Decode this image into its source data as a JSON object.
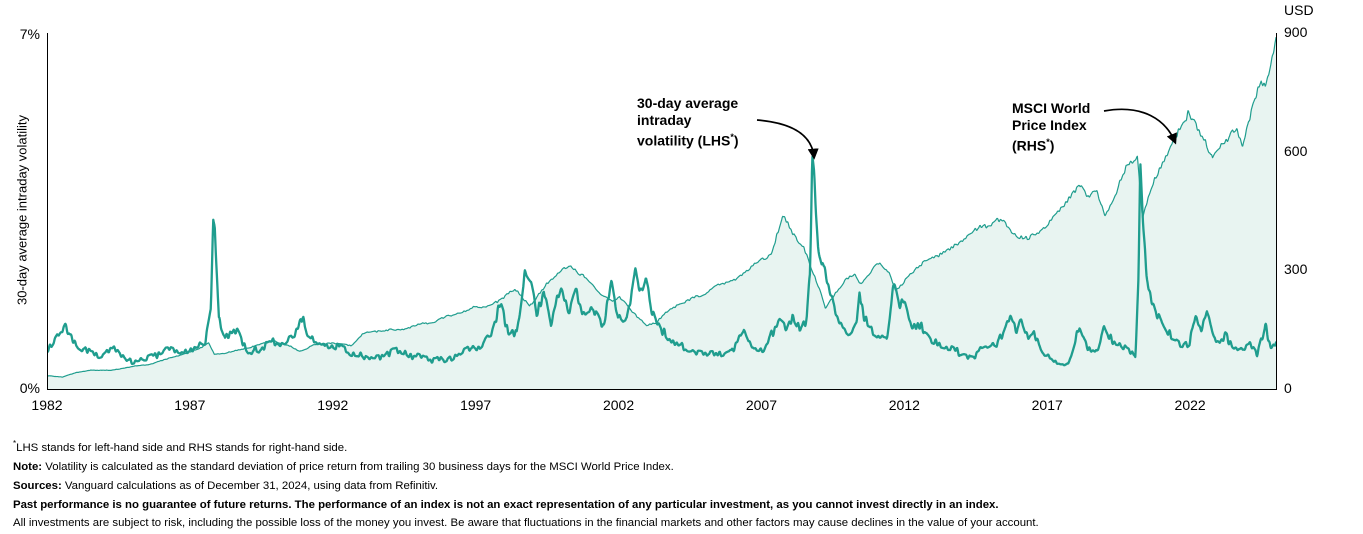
{
  "chart_data": {
    "type": "line",
    "title": "",
    "grid": false,
    "legend_position": "inline-annotations",
    "x_axis": {
      "range": [
        1982,
        2024.97
      ],
      "ticks": [
        1982,
        1987,
        1992,
        1997,
        2002,
        2007,
        2012,
        2017,
        2022
      ]
    },
    "left_axis": {
      "label": "30-day average intraday volatility",
      "range": [
        0,
        7
      ],
      "unit": "%",
      "tick_labels_top_to_bottom": [
        "7%",
        "0%"
      ]
    },
    "right_axis": {
      "label": "USD",
      "range": [
        0,
        900
      ],
      "ticks_top_to_bottom": [
        900,
        600,
        300,
        0
      ]
    },
    "colors": {
      "line": "#1f9d8e",
      "area_fill": "#e8f4f1",
      "axis": "#000000",
      "annotation": "#000000"
    },
    "series": [
      {
        "name": "30-day average intraday volatility (LHS)",
        "axis": "left",
        "style": "line",
        "stroke_width": 2.3,
        "unit": "%",
        "noise": {
          "abs": 0.1,
          "rel": 0.18,
          "freq_slow": 3,
          "freq_fast": 16
        },
        "anchors": [
          [
            1982.0,
            0.75
          ],
          [
            1982.3,
            1.0
          ],
          [
            1982.6,
            1.3
          ],
          [
            1982.9,
            0.95
          ],
          [
            1983.3,
            0.75
          ],
          [
            1983.8,
            0.65
          ],
          [
            1984.3,
            0.75
          ],
          [
            1984.8,
            0.6
          ],
          [
            1985.3,
            0.55
          ],
          [
            1985.9,
            0.65
          ],
          [
            1986.3,
            0.85
          ],
          [
            1986.7,
            0.7
          ],
          [
            1987.1,
            0.75
          ],
          [
            1987.5,
            0.9
          ],
          [
            1987.7,
            1.5
          ],
          [
            1987.78,
            3.35
          ],
          [
            1987.84,
            3.25
          ],
          [
            1987.98,
            1.4
          ],
          [
            1988.2,
            1.0
          ],
          [
            1988.6,
            1.1
          ],
          [
            1989.0,
            0.8
          ],
          [
            1989.5,
            0.75
          ],
          [
            1989.9,
            0.95
          ],
          [
            1990.3,
            0.85
          ],
          [
            1990.65,
            1.2
          ],
          [
            1990.85,
            1.45
          ],
          [
            1991.1,
            1.05
          ],
          [
            1991.6,
            0.8
          ],
          [
            1992.1,
            0.85
          ],
          [
            1992.6,
            0.7
          ],
          [
            1993.1,
            0.6
          ],
          [
            1993.7,
            0.65
          ],
          [
            1994.2,
            0.75
          ],
          [
            1994.8,
            0.65
          ],
          [
            1995.4,
            0.55
          ],
          [
            1996.0,
            0.6
          ],
          [
            1996.6,
            0.75
          ],
          [
            1997.1,
            0.85
          ],
          [
            1997.5,
            1.05
          ],
          [
            1997.82,
            1.75
          ],
          [
            1998.1,
            1.1
          ],
          [
            1998.4,
            1.05
          ],
          [
            1998.68,
            2.2
          ],
          [
            1998.9,
            2.0
          ],
          [
            1999.1,
            1.45
          ],
          [
            1999.35,
            1.95
          ],
          [
            1999.6,
            1.25
          ],
          [
            1999.95,
            2.05
          ],
          [
            2000.2,
            1.45
          ],
          [
            2000.45,
            1.9
          ],
          [
            2000.75,
            1.35
          ],
          [
            2001.1,
            1.55
          ],
          [
            2001.45,
            1.25
          ],
          [
            2001.72,
            2.1
          ],
          [
            2001.95,
            1.45
          ],
          [
            2002.25,
            1.35
          ],
          [
            2002.55,
            2.3
          ],
          [
            2002.75,
            1.9
          ],
          [
            2002.92,
            2.15
          ],
          [
            2003.15,
            1.5
          ],
          [
            2003.5,
            1.15
          ],
          [
            2003.9,
            0.9
          ],
          [
            2004.4,
            0.8
          ],
          [
            2004.9,
            0.7
          ],
          [
            2005.4,
            0.65
          ],
          [
            2005.9,
            0.75
          ],
          [
            2006.35,
            1.15
          ],
          [
            2006.7,
            0.8
          ],
          [
            2007.05,
            0.7
          ],
          [
            2007.3,
            1.05
          ],
          [
            2007.6,
            1.35
          ],
          [
            2007.85,
            1.25
          ],
          [
            2008.05,
            1.5
          ],
          [
            2008.3,
            1.25
          ],
          [
            2008.55,
            1.4
          ],
          [
            2008.66,
            2.3
          ],
          [
            2008.74,
            4.35
          ],
          [
            2008.8,
            4.1
          ],
          [
            2008.95,
            2.7
          ],
          [
            2009.1,
            2.45
          ],
          [
            2009.35,
            1.9
          ],
          [
            2009.65,
            1.45
          ],
          [
            2010.0,
            1.05
          ],
          [
            2010.3,
            1.25
          ],
          [
            2010.4,
            1.9
          ],
          [
            2010.55,
            1.35
          ],
          [
            2010.8,
            1.15
          ],
          [
            2011.1,
            0.95
          ],
          [
            2011.35,
            1.05
          ],
          [
            2011.62,
            2.1
          ],
          [
            2011.8,
            1.65
          ],
          [
            2011.95,
            1.7
          ],
          [
            2012.2,
            1.15
          ],
          [
            2012.55,
            1.25
          ],
          [
            2012.9,
            0.9
          ],
          [
            2013.3,
            0.85
          ],
          [
            2013.8,
            0.75
          ],
          [
            2014.3,
            0.6
          ],
          [
            2014.8,
            0.8
          ],
          [
            2015.2,
            0.85
          ],
          [
            2015.65,
            1.35
          ],
          [
            2015.9,
            1.1
          ],
          [
            2016.05,
            1.3
          ],
          [
            2016.3,
            0.95
          ],
          [
            2016.5,
            1.1
          ],
          [
            2016.8,
            0.75
          ],
          [
            2017.2,
            0.55
          ],
          [
            2017.7,
            0.5
          ],
          [
            2018.1,
            1.3
          ],
          [
            2018.4,
            0.85
          ],
          [
            2018.7,
            0.75
          ],
          [
            2018.95,
            1.2
          ],
          [
            2019.3,
            0.85
          ],
          [
            2019.7,
            0.75
          ],
          [
            2020.05,
            0.7
          ],
          [
            2020.16,
            2.2
          ],
          [
            2020.22,
            4.3
          ],
          [
            2020.32,
            3.0
          ],
          [
            2020.5,
            1.9
          ],
          [
            2020.75,
            1.5
          ],
          [
            2021.0,
            1.3
          ],
          [
            2021.3,
            1.0
          ],
          [
            2021.7,
            0.85
          ],
          [
            2021.95,
            0.95
          ],
          [
            2022.15,
            1.5
          ],
          [
            2022.35,
            1.2
          ],
          [
            2022.55,
            1.55
          ],
          [
            2022.8,
            1.05
          ],
          [
            2023.0,
            0.95
          ],
          [
            2023.2,
            1.05
          ],
          [
            2023.45,
            0.8
          ],
          [
            2023.75,
            0.72
          ],
          [
            2024.0,
            0.85
          ],
          [
            2024.3,
            0.7
          ],
          [
            2024.6,
            1.25
          ],
          [
            2024.78,
            0.8
          ],
          [
            2024.97,
            0.9
          ]
        ]
      },
      {
        "name": "MSCI World Price Index (RHS)",
        "axis": "right",
        "style": "area",
        "stroke_width": 1.2,
        "unit": "USD",
        "noise": {
          "rel_slow": 0.028,
          "rel_fast": 0.012,
          "freq_slow": 2.2,
          "freq_fast": 18
        },
        "anchors": [
          [
            1982.0,
            33
          ],
          [
            1982.5,
            30
          ],
          [
            1983.0,
            42
          ],
          [
            1983.5,
            48
          ],
          [
            1984.2,
            46
          ],
          [
            1985.0,
            56
          ],
          [
            1985.7,
            66
          ],
          [
            1986.3,
            80
          ],
          [
            1986.9,
            92
          ],
          [
            1987.35,
            102
          ],
          [
            1987.62,
            115
          ],
          [
            1987.82,
            86
          ],
          [
            1988.1,
            90
          ],
          [
            1988.6,
            98
          ],
          [
            1989.3,
            110
          ],
          [
            1989.9,
            122
          ],
          [
            1990.5,
            108
          ],
          [
            1990.8,
            97
          ],
          [
            1991.3,
            110
          ],
          [
            1992.0,
            116
          ],
          [
            1992.6,
            112
          ],
          [
            1993.0,
            138
          ],
          [
            1994.0,
            152
          ],
          [
            1994.5,
            148
          ],
          [
            1995.0,
            160
          ],
          [
            1995.75,
            178
          ],
          [
            1996.4,
            192
          ],
          [
            1996.9,
            206
          ],
          [
            1997.4,
            214
          ],
          [
            1997.9,
            228
          ],
          [
            1998.4,
            247
          ],
          [
            1998.85,
            213
          ],
          [
            1999.2,
            247
          ],
          [
            1999.6,
            272
          ],
          [
            2000.3,
            311
          ],
          [
            2000.9,
            270
          ],
          [
            2001.4,
            244
          ],
          [
            2001.75,
            221
          ],
          [
            2002.0,
            232
          ],
          [
            2002.45,
            196
          ],
          [
            2002.95,
            165
          ],
          [
            2003.3,
            172
          ],
          [
            2003.95,
            206
          ],
          [
            2004.6,
            231
          ],
          [
            2005.7,
            265
          ],
          [
            2006.3,
            290
          ],
          [
            2006.75,
            311
          ],
          [
            2007.3,
            340
          ],
          [
            2007.7,
            428
          ],
          [
            2008.1,
            398
          ],
          [
            2008.45,
            363
          ],
          [
            2008.75,
            300
          ],
          [
            2008.97,
            252
          ],
          [
            2009.2,
            200
          ],
          [
            2009.55,
            235
          ],
          [
            2009.9,
            270
          ],
          [
            2010.25,
            288
          ],
          [
            2010.45,
            272
          ],
          [
            2010.8,
            290
          ],
          [
            2011.05,
            316
          ],
          [
            2011.4,
            307
          ],
          [
            2011.65,
            257
          ],
          [
            2012.0,
            278
          ],
          [
            2012.7,
            316
          ],
          [
            2013.5,
            355
          ],
          [
            2014.4,
            398
          ],
          [
            2015.2,
            427
          ],
          [
            2015.65,
            398
          ],
          [
            2015.95,
            380
          ],
          [
            2016.3,
            390
          ],
          [
            2016.8,
            412
          ],
          [
            2017.5,
            450
          ],
          [
            2018.1,
            510
          ],
          [
            2018.35,
            478
          ],
          [
            2018.7,
            500
          ],
          [
            2018.98,
            445
          ],
          [
            2019.4,
            500
          ],
          [
            2019.85,
            582
          ],
          [
            2020.12,
            590
          ],
          [
            2020.3,
            432
          ],
          [
            2020.6,
            500
          ],
          [
            2020.95,
            560
          ],
          [
            2021.4,
            640
          ],
          [
            2021.9,
            715
          ],
          [
            2022.2,
            660
          ],
          [
            2022.5,
            620
          ],
          [
            2022.75,
            573
          ],
          [
            2023.05,
            630
          ],
          [
            2023.4,
            655
          ],
          [
            2023.6,
            663
          ],
          [
            2023.8,
            612
          ],
          [
            2024.1,
            690
          ],
          [
            2024.45,
            766
          ],
          [
            2024.6,
            745
          ],
          [
            2024.97,
            874
          ]
        ]
      }
    ],
    "annotations": [
      {
        "lines": [
          "30-day average",
          "intraday",
          "volatility (LHS*)"
        ],
        "points_to": "2008 volatility spike"
      },
      {
        "lines": [
          "MSCI World",
          "Price Index",
          "(RHS*)"
        ],
        "points_to": "index area, 2022"
      }
    ]
  },
  "footnotes": [
    {
      "sup": "*",
      "bold": "",
      "text": "LHS stands for left-hand side and RHS stands for right-hand side."
    },
    {
      "sup": "",
      "bold": "Note:",
      "text": " Volatility is calculated as the standard deviation of price return from trailing 30 business days for the MSCI World Price Index."
    },
    {
      "sup": "",
      "bold": "Sources:",
      "text": " Vanguard calculations as of December 31, 2024, using data from Refinitiv."
    },
    {
      "sup": "",
      "bold": "Past performance is no guarantee of future returns. The performance of an index is not an exact representation of any particular investment, as you cannot invest directly in an index.",
      "text": ""
    },
    {
      "sup": "",
      "bold": "",
      "text": "All investments are subject to risk, including the possible loss of the money you invest. Be aware that fluctuations in the financial markets and other factors may cause declines in the value of your account."
    }
  ]
}
